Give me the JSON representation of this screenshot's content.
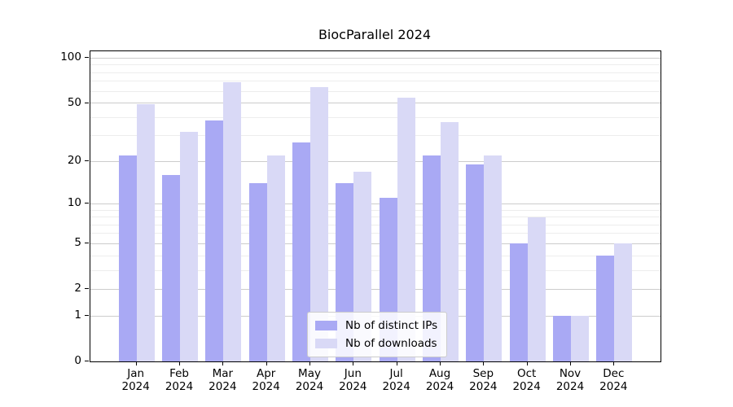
{
  "chart_data": {
    "type": "bar",
    "title": "BiocParallel 2024",
    "categories": [
      {
        "month": "Jan",
        "year": "2024"
      },
      {
        "month": "Feb",
        "year": "2024"
      },
      {
        "month": "Mar",
        "year": "2024"
      },
      {
        "month": "Apr",
        "year": "2024"
      },
      {
        "month": "May",
        "year": "2024"
      },
      {
        "month": "Jun",
        "year": "2024"
      },
      {
        "month": "Jul",
        "year": "2024"
      },
      {
        "month": "Aug",
        "year": "2024"
      },
      {
        "month": "Sep",
        "year": "2024"
      },
      {
        "month": "Oct",
        "year": "2024"
      },
      {
        "month": "Nov",
        "year": "2024"
      },
      {
        "month": "Dec",
        "year": "2024"
      }
    ],
    "series": [
      {
        "name": "Nb of distinct IPs",
        "color": "#a9a9f4",
        "values": [
          22,
          16,
          38,
          14,
          27,
          14,
          11,
          22,
          19,
          5,
          1,
          4
        ]
      },
      {
        "name": "Nb of downloads",
        "color": "#d9d9f6",
        "values": [
          49,
          32,
          69,
          22,
          64,
          17,
          54,
          37,
          22,
          8,
          1,
          5
        ]
      }
    ],
    "yaxis": {
      "scale": "log1p",
      "top_value": 111,
      "ticks": [
        0,
        1,
        2,
        5,
        10,
        20,
        50,
        100
      ],
      "tick_labels": [
        "0",
        "1",
        "2",
        "5",
        "10",
        "20",
        "50",
        "100"
      ],
      "minor_gridlines": [
        3,
        4,
        6,
        7,
        8,
        9,
        30,
        40,
        60,
        70,
        80,
        90
      ]
    },
    "xlabel": "",
    "ylabel": "",
    "grid": true,
    "legend_position": "lower center",
    "colors": {
      "major_grid": "#cccccc",
      "minor_grid": "#ededed",
      "spine": "#000000",
      "background": "#ffffff"
    }
  }
}
